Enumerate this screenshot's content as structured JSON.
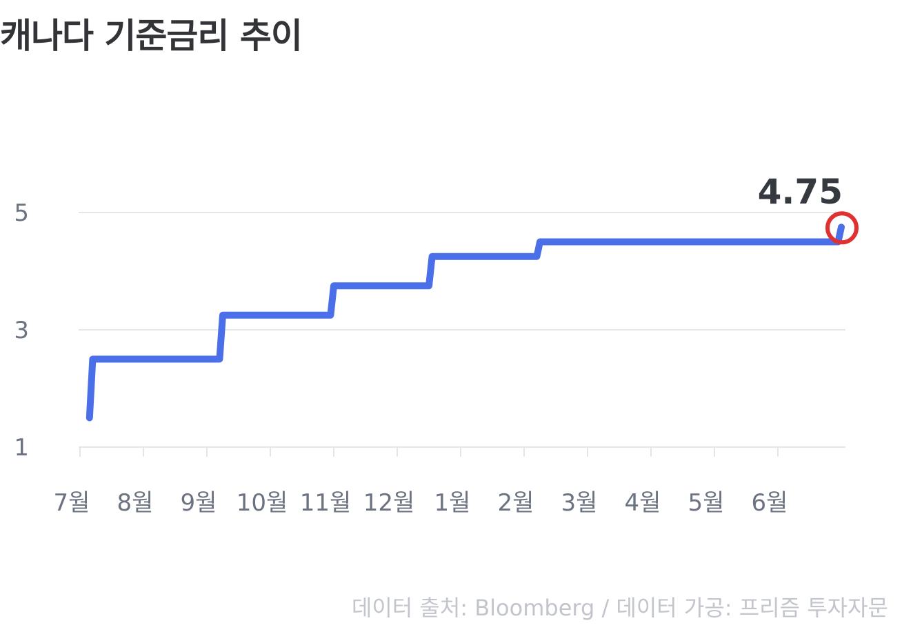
{
  "title": "캐나다 기준금리 추이",
  "source": "데이터 출처: Bloomberg / 데이터 가공: 프리즘 투자자문",
  "colors": {
    "line": "#4a6fe8",
    "highlight": "#e03131",
    "grid": "#e4e6ea",
    "axis_text": "#6b7280",
    "title": "#333438"
  },
  "chart_data": {
    "type": "line",
    "interpolation": "step",
    "title": "캐나다 기준금리 추이",
    "xlabel": "",
    "ylabel": "",
    "ylim": [
      1,
      5
    ],
    "yticks": [
      "1",
      "3",
      "5"
    ],
    "x_tick_labels": [
      "7월",
      "8월",
      "9월",
      "10월",
      "11월",
      "12월",
      "1월",
      "2월",
      "3월",
      "4월",
      "5월",
      "6월"
    ],
    "grid": true,
    "series": [
      {
        "points": [
          {
            "x": 0.15,
            "y": 1.5
          },
          {
            "x": 0.2,
            "y": 2.5
          },
          {
            "x": 2.2,
            "y": 2.5
          },
          {
            "x": 2.25,
            "y": 3.25
          },
          {
            "x": 3.95,
            "y": 3.25
          },
          {
            "x": 4.0,
            "y": 3.75
          },
          {
            "x": 5.5,
            "y": 3.75
          },
          {
            "x": 5.55,
            "y": 4.25
          },
          {
            "x": 7.2,
            "y": 4.25
          },
          {
            "x": 7.25,
            "y": 4.5
          },
          {
            "x": 11.95,
            "y": 4.5
          },
          {
            "x": 12.0,
            "y": 4.75
          }
        ]
      }
    ],
    "annotation": {
      "text": "4.75",
      "x": 12.0,
      "y": 4.75
    }
  }
}
